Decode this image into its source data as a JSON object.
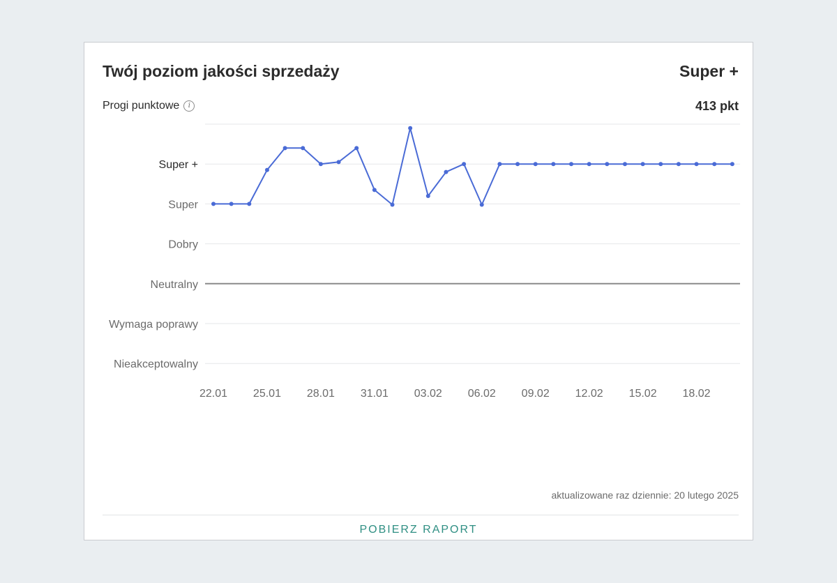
{
  "header": {
    "title": "Twój poziom jakości sprzedaży",
    "level": "Super +",
    "thresholds_label": "Progi punktowe",
    "score": "413 pkt"
  },
  "footer": {
    "updated": "aktualizowane raz dziennie: 20 lutego 2025",
    "download_label": "POBIERZ RAPORT"
  },
  "colors": {
    "line": "#4a6bd6",
    "neutral_line": "#8a8a8a",
    "grid": "#e6e7e9",
    "accent": "#2f8f83"
  },
  "chart_data": {
    "type": "line",
    "y_levels": [
      "Super +",
      "Super",
      "Dobry",
      "Neutralny",
      "Wymaga poprawy",
      "Nieakceptowalny"
    ],
    "x_tick_labels": [
      "22.01",
      "25.01",
      "28.01",
      "31.01",
      "03.02",
      "06.02",
      "09.02",
      "12.02",
      "15.02",
      "18.02"
    ],
    "x_tick_index": [
      0,
      3,
      6,
      9,
      12,
      15,
      18,
      21,
      24,
      27
    ],
    "dates": [
      "22.01",
      "23.01",
      "24.01",
      "25.01",
      "26.01",
      "27.01",
      "28.01",
      "29.01",
      "30.01",
      "31.01",
      "01.02",
      "02.02",
      "03.02",
      "04.02",
      "05.02",
      "06.02",
      "07.02",
      "08.02",
      "09.02",
      "10.02",
      "11.02",
      "12.02",
      "13.02",
      "14.02",
      "15.02",
      "16.02",
      "17.02",
      "18.02",
      "19.02",
      "20.02"
    ],
    "series": [
      {
        "level_position": [
          4.0,
          4.0,
          4.0,
          4.85,
          5.4,
          5.4,
          5.0,
          5.05,
          5.4,
          4.35,
          3.98,
          5.9,
          4.2,
          4.8,
          5.0,
          3.98,
          5.0,
          5.0,
          5.0,
          5.0,
          5.0,
          5.0,
          5.0,
          5.0,
          5.0,
          5.0,
          5.0,
          5.0,
          5.0,
          5.0
        ]
      }
    ],
    "neutral_line": "Neutralny",
    "grid": true
  }
}
